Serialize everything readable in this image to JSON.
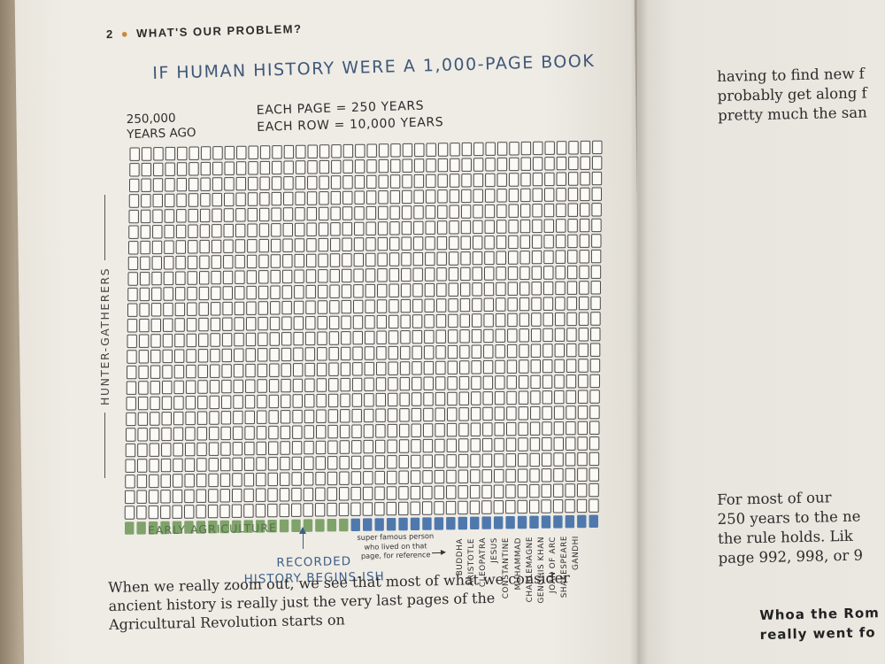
{
  "header": {
    "page_number": "2",
    "section": "WHAT'S OUR PROBLEM?"
  },
  "figure": {
    "title": "IF HUMAN HISTORY WERE A 1,000-PAGE BOOK",
    "start_label_line1": "250,000",
    "start_label_line2": "YEARS AGO",
    "scale_line1": "EACH PAGE = 250 YEARS",
    "scale_line2": "EACH ROW = 10,000 YEARS",
    "side_label": "HUNTER-GATHERERS",
    "agriculture_label": "EARLY AGRICULTURE",
    "recorded_label_line1": "RECORDED",
    "recorded_label_line2": "HISTORY BEGINS-ISH",
    "note_line1": "super famous person",
    "note_line2": "who lived on that",
    "note_line3": "page, for reference",
    "famous_people": [
      "BUDDHA",
      "ARISTOTLE",
      "CLEOPATRA",
      "JESUS",
      "CONSTANTINE",
      "MUHAMMAD",
      "CHARLEMAGNE",
      "GENGHIS KHAN",
      "JOAN OF ARC",
      "SHAKESPEARE",
      "GANDHI"
    ],
    "colors": {
      "empty": "#fbfaf6",
      "outline": "#4a4a48",
      "agriculture": "#7fa36a",
      "recorded": "#4f79ad"
    }
  },
  "body_text": {
    "line1": "When we really zoom out, we see that most of what we consider",
    "line2": "ancient history is really just the very last pages of the",
    "line3": "Agricultural Revolution starts on"
  },
  "right_page": {
    "p1_line1": "having to find new f",
    "p1_line2": "probably get along f",
    "p1_line3": "pretty much the san",
    "p2_line1": "For most of our",
    "p2_line2": "250 years to the ne",
    "p2_line3": "the rule holds. Lik",
    "p2_line4": "page 992, 998, or 9",
    "p3_line1": "Whoa the Rom",
    "p3_line2": "really went fo"
  }
}
